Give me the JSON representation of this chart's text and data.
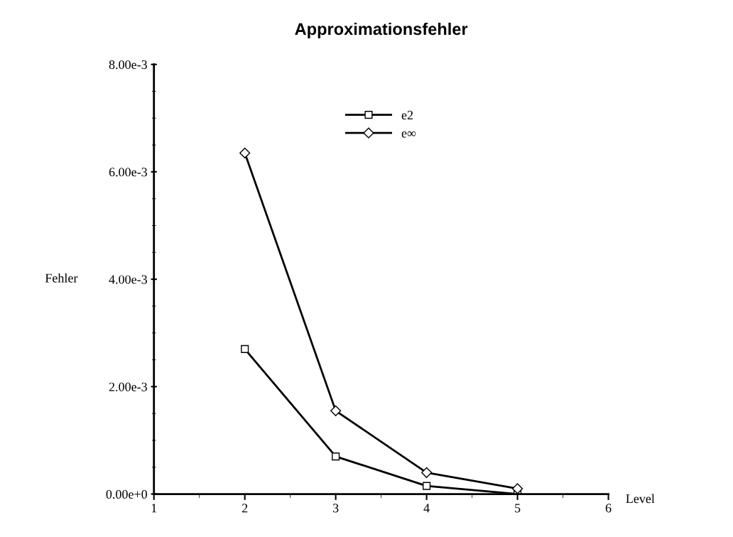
{
  "chart_data": {
    "type": "line",
    "title": "Approximationsfehler",
    "xlabel": "Level",
    "ylabel": "Fehler",
    "xlim": [
      1,
      6
    ],
    "xticks": [
      1,
      2,
      3,
      4,
      5,
      6
    ],
    "ylim": [
      0,
      0.008
    ],
    "yticks": [
      {
        "value": 0,
        "label": "0.00e+0"
      },
      {
        "value": 0.002,
        "label": "2.00e-3"
      },
      {
        "value": 0.004,
        "label": "4.00e-3"
      },
      {
        "value": 0.006,
        "label": "6.00e-3"
      },
      {
        "value": 0.008,
        "label": "8.00e-3"
      }
    ],
    "x": [
      2,
      3,
      4,
      5
    ],
    "series": [
      {
        "name": "e2",
        "color": "#000000",
        "marker": "square",
        "values": [
          0.0027,
          0.0007,
          0.00015,
          0.0
        ]
      },
      {
        "name": "e∞",
        "color": "#000000",
        "marker": "diamond",
        "values": [
          0.00635,
          0.00155,
          0.0004,
          0.0001
        ]
      }
    ],
    "legend": "top",
    "grid": false,
    "line_style": "solid"
  }
}
